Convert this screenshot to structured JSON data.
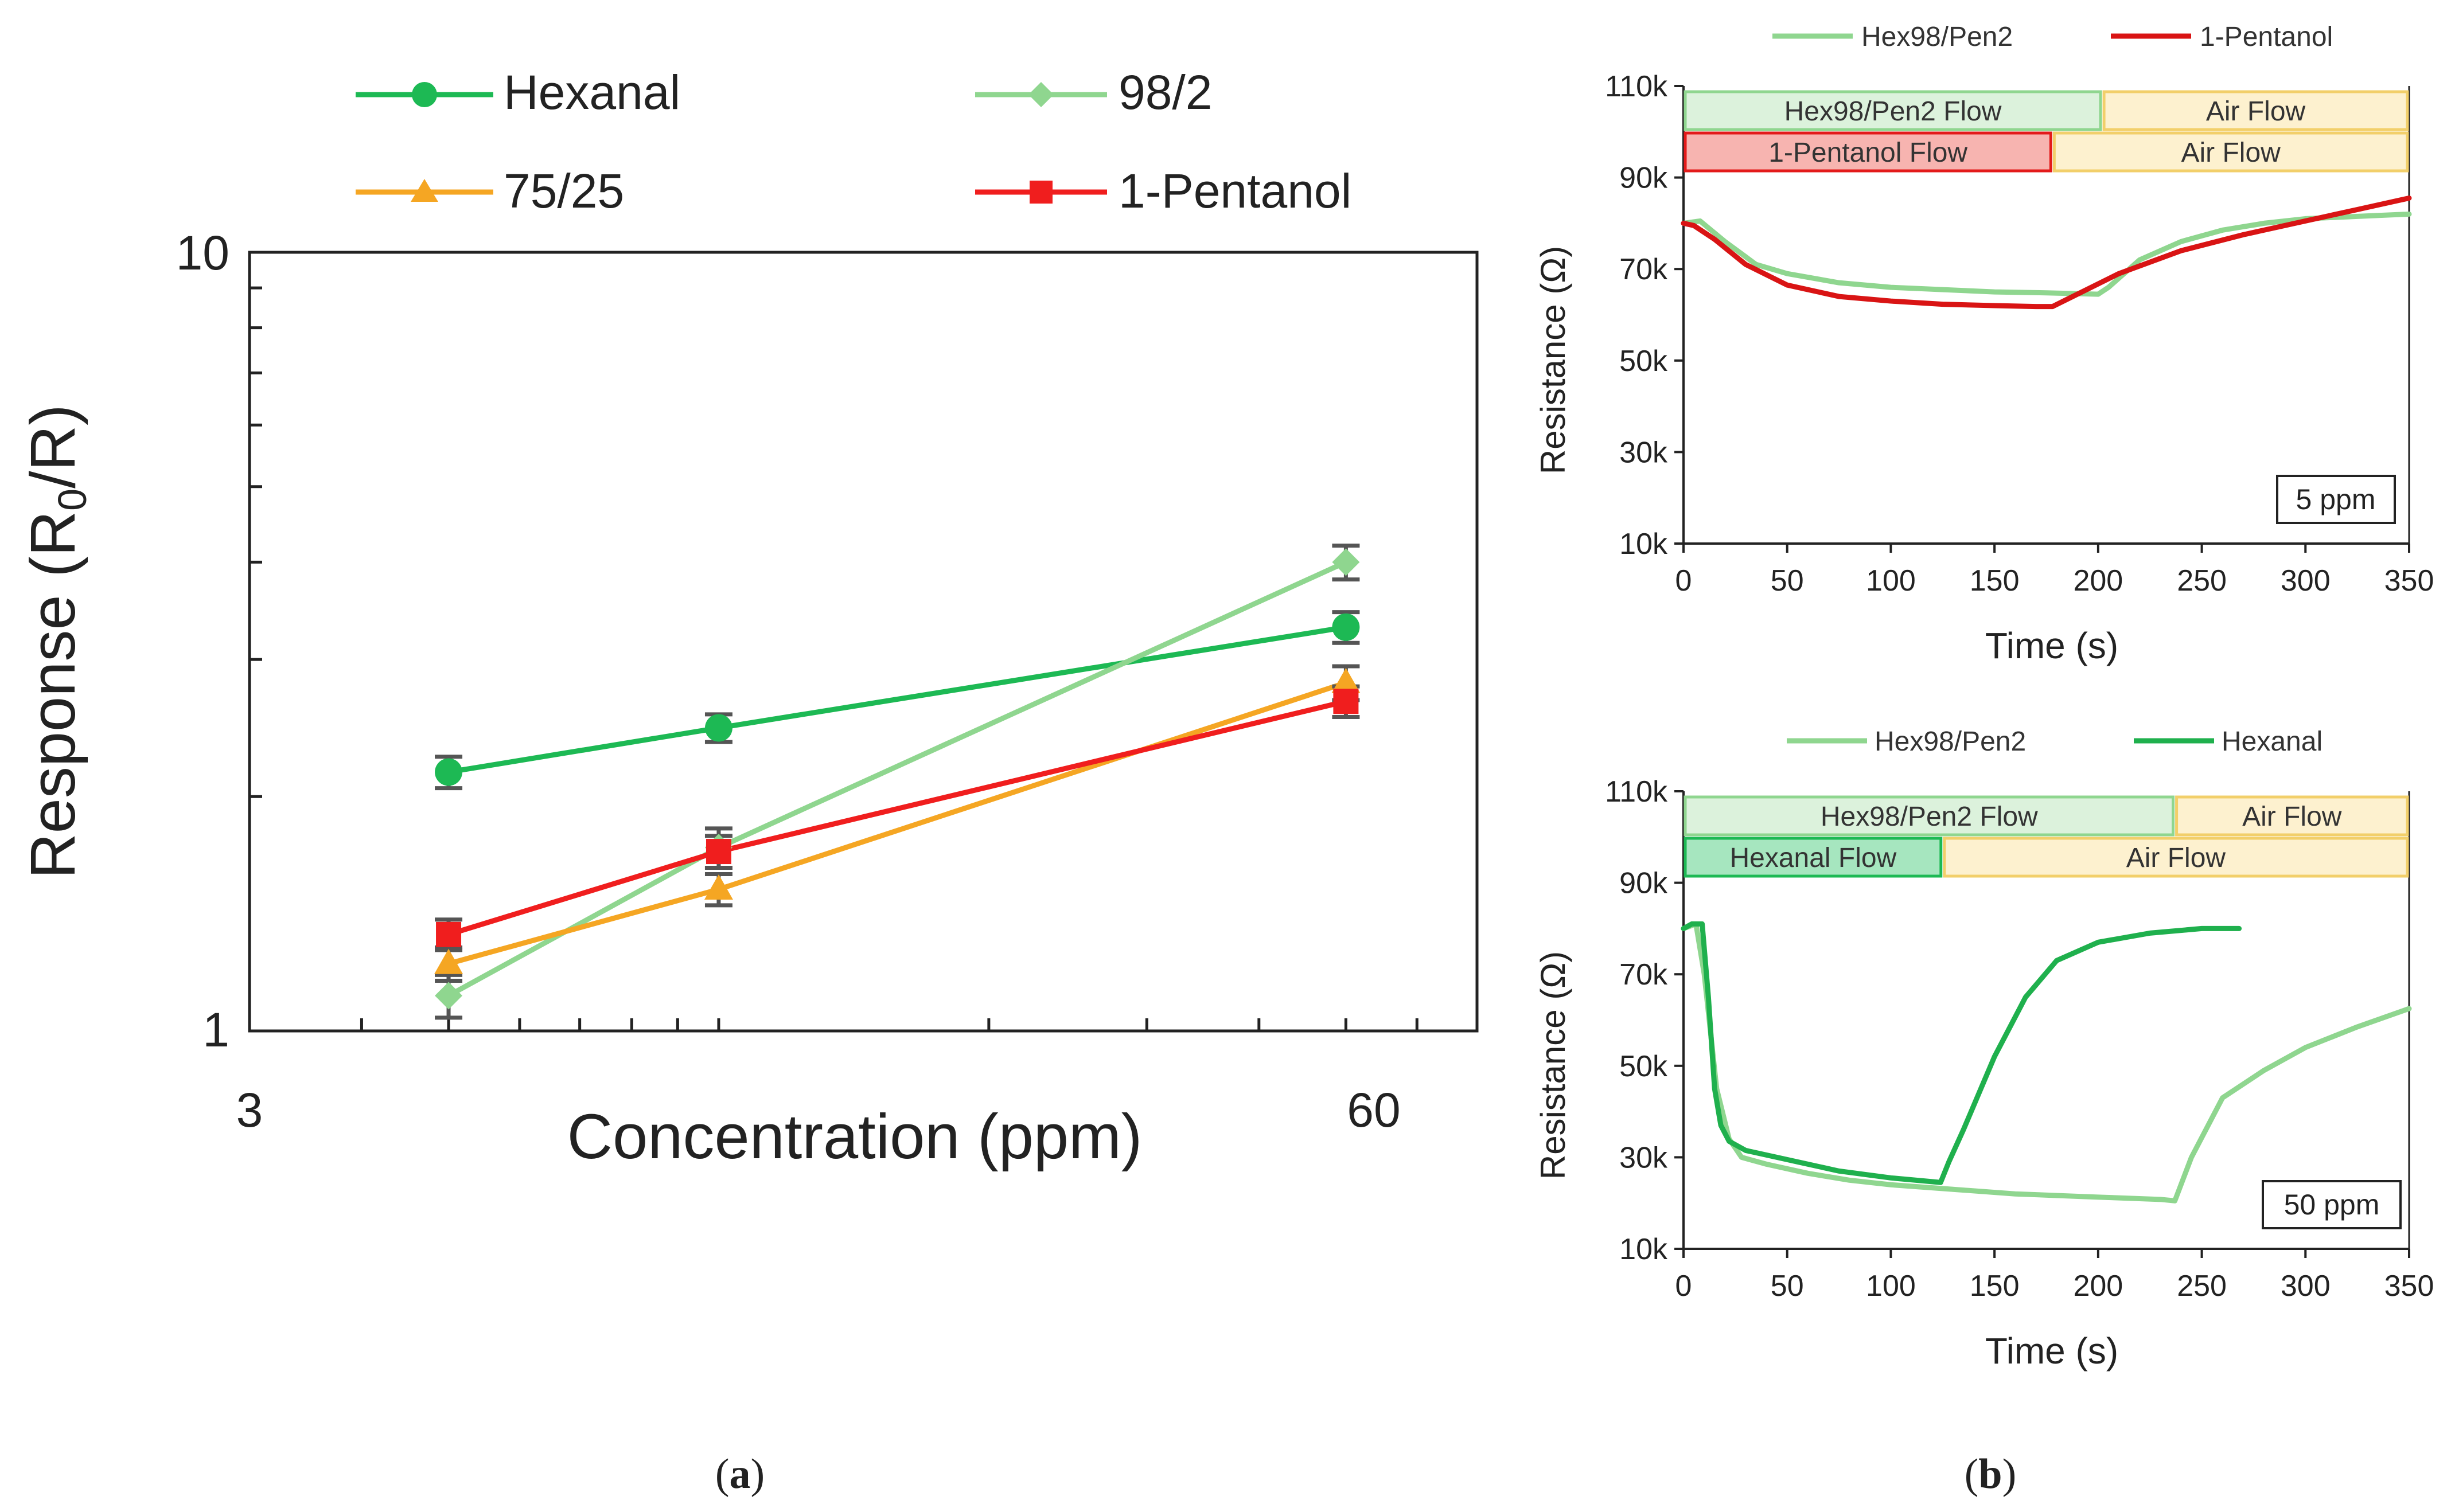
{
  "subfigure_labels": {
    "a": "a",
    "b": "b"
  },
  "chart_data": [
    {
      "id": "a",
      "type": "line",
      "xscale": "log",
      "yscale": "log",
      "xlabel": "Concentration (ppm)",
      "ylabel_prefix": "Response (R",
      "ylabel_subscript": "0",
      "ylabel_suffix": "/R)",
      "xlim": [
        3,
        70
      ],
      "ylim": [
        1,
        10
      ],
      "x_ticklabels": [
        "3",
        "60"
      ],
      "y_ticklabels": [
        "1",
        "10"
      ],
      "x": [
        5,
        10,
        50
      ],
      "legend_position": "top",
      "series": [
        {
          "name": "Hexanal",
          "color": "#1db954",
          "marker": "circle",
          "values": [
            2.15,
            2.45,
            3.3
          ],
          "errors": [
            0.1,
            0.1,
            0.15
          ]
        },
        {
          "name": "98/2",
          "color": "#8fd68f",
          "marker": "diamond",
          "values": [
            1.11,
            1.72,
            4.0
          ],
          "errors": [
            0.07,
            0.1,
            0.2
          ]
        },
        {
          "name": "75/25",
          "color": "#f5a623",
          "marker": "triangle",
          "values": [
            1.22,
            1.52,
            2.8
          ],
          "errors": [
            0.06,
            0.07,
            0.14
          ]
        },
        {
          "name": "1-Pentanol",
          "color": "#f01e1e",
          "marker": "square",
          "values": [
            1.33,
            1.7,
            2.65
          ],
          "errors": [
            0.06,
            0.08,
            0.12
          ]
        }
      ]
    },
    {
      "id": "b-top",
      "type": "line",
      "xlabel": "Time (s)",
      "ylabel": "Resistance (Ω)",
      "xlim": [
        0,
        350
      ],
      "ylim": [
        10000,
        110000
      ],
      "x_ticks": [
        0,
        50,
        100,
        150,
        200,
        250,
        300,
        350
      ],
      "x_ticklabels": [
        "0",
        "50",
        "100",
        "150",
        "200",
        "250",
        "300",
        "350"
      ],
      "y_ticks": [
        10000,
        30000,
        50000,
        70000,
        90000,
        110000
      ],
      "y_ticklabels": [
        "10k",
        "30k",
        "50k",
        "70k",
        "90k",
        "110k"
      ],
      "annotation": "5 ppm",
      "legend_position": "top",
      "flow_bars": [
        {
          "segments": [
            {
              "label": "Hex98/Pen2 Flow",
              "start": 0,
              "end": 202,
              "fill": "#dcf2dc",
              "stroke": "#8fd68f"
            },
            {
              "label": "Air Flow",
              "start": 202,
              "end": 350,
              "fill": "#fdf1cf",
              "stroke": "#f2cf6a"
            }
          ]
        },
        {
          "segments": [
            {
              "label": "1-Pentanol Flow",
              "start": 0,
              "end": 178,
              "fill": "#f7b4b0",
              "stroke": "#e31a1a"
            },
            {
              "label": "Air Flow",
              "start": 178,
              "end": 350,
              "fill": "#fdf1cf",
              "stroke": "#f2cf6a"
            }
          ]
        }
      ],
      "series": [
        {
          "name": "Hex98/Pen2",
          "color": "#8fd68f",
          "x": [
            0,
            8,
            20,
            35,
            50,
            75,
            100,
            125,
            150,
            175,
            200,
            205,
            220,
            240,
            260,
            280,
            300,
            325,
            350
          ],
          "values": [
            80000,
            80500,
            76000,
            71000,
            69000,
            67000,
            66000,
            65500,
            65000,
            64800,
            64500,
            66000,
            72000,
            76000,
            78500,
            80000,
            81000,
            81500,
            82000
          ]
        },
        {
          "name": "1-Pentanol",
          "color": "#d91414",
          "x": [
            0,
            5,
            15,
            30,
            50,
            75,
            100,
            125,
            150,
            170,
            178,
            190,
            210,
            240,
            270,
            300,
            325,
            350
          ],
          "values": [
            80000,
            79500,
            76500,
            71000,
            66500,
            64000,
            63000,
            62300,
            62000,
            61800,
            61800,
            64500,
            69000,
            74000,
            77500,
            80500,
            83000,
            85500
          ]
        }
      ]
    },
    {
      "id": "b-bottom",
      "type": "line",
      "xlabel": "Time (s)",
      "ylabel": "Resistance (Ω)",
      "xlim": [
        0,
        350
      ],
      "ylim": [
        10000,
        110000
      ],
      "x_ticks": [
        0,
        50,
        100,
        150,
        200,
        250,
        300,
        350
      ],
      "x_ticklabels": [
        "0",
        "50",
        "100",
        "150",
        "200",
        "250",
        "300",
        "350"
      ],
      "y_ticks": [
        10000,
        30000,
        50000,
        70000,
        90000,
        110000
      ],
      "y_ticklabels": [
        "10k",
        "30k",
        "50k",
        "70k",
        "90k",
        "110k"
      ],
      "annotation": "50 ppm",
      "legend_position": "top",
      "flow_bars": [
        {
          "segments": [
            {
              "label": "Hex98/Pen2 Flow",
              "start": 0,
              "end": 237,
              "fill": "#dcf2dc",
              "stroke": "#8fd68f"
            },
            {
              "label": "Air Flow",
              "start": 237,
              "end": 350,
              "fill": "#fdf1cf",
              "stroke": "#f2cf6a"
            }
          ]
        },
        {
          "segments": [
            {
              "label": "Hexanal Flow",
              "start": 0,
              "end": 125,
              "fill": "#a6e6bf",
              "stroke": "#1db954"
            },
            {
              "label": "Air Flow",
              "start": 125,
              "end": 350,
              "fill": "#fdf1cf",
              "stroke": "#f2cf6a"
            }
          ]
        }
      ],
      "series": [
        {
          "name": "Hex98/Pen2",
          "color": "#8fd68f",
          "x": [
            0,
            6,
            10,
            16,
            22,
            28,
            40,
            60,
            80,
            100,
            130,
            160,
            200,
            230,
            237,
            245,
            260,
            280,
            300,
            325,
            350
          ],
          "values": [
            80000,
            81000,
            70000,
            45000,
            34000,
            30000,
            28500,
            26500,
            25000,
            24000,
            23000,
            22000,
            21300,
            20800,
            20500,
            30000,
            43000,
            49000,
            54000,
            58500,
            62500
          ]
        },
        {
          "name": "Hexanal",
          "color": "#1fb04d",
          "x": [
            0,
            4,
            9,
            12,
            15,
            18,
            22,
            30,
            50,
            75,
            100,
            124,
            128,
            135,
            150,
            165,
            180,
            200,
            225,
            250,
            268
          ],
          "values": [
            80000,
            81000,
            81000,
            65000,
            45000,
            37000,
            33500,
            31500,
            29500,
            27000,
            25500,
            24500,
            29000,
            36000,
            52000,
            65000,
            73000,
            77000,
            79000,
            80000,
            80000
          ]
        }
      ]
    }
  ]
}
